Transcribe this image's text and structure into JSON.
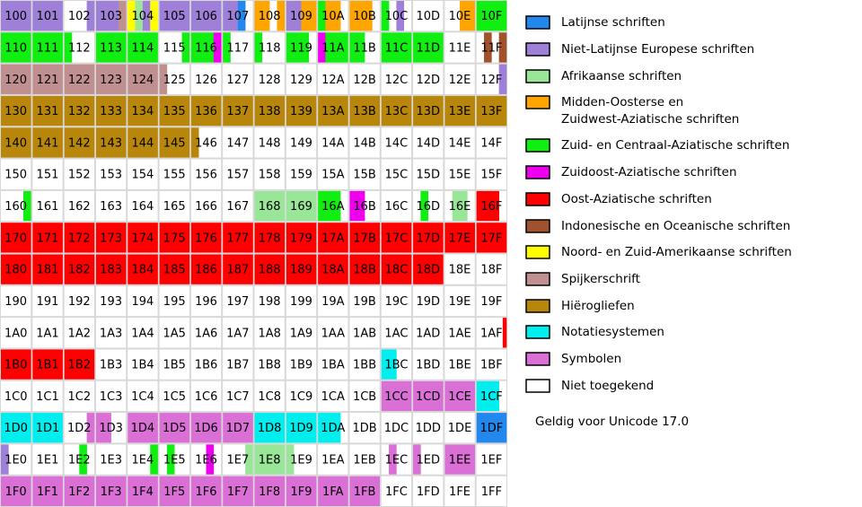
{
  "grid": {
    "rows": [
      [
        [
          "100",
          "N"
        ],
        [
          "101",
          "N"
        ],
        [
          "102",
          "UUUN"
        ],
        [
          "103",
          "NNNC"
        ],
        [
          "104",
          "WANW"
        ],
        [
          "105",
          "N"
        ],
        [
          "106",
          "N"
        ],
        [
          "107",
          "NNLU"
        ],
        [
          "108",
          "MMUM"
        ],
        [
          "109",
          "NNMM"
        ],
        [
          "10A",
          "ZMMU"
        ],
        [
          "10B",
          "MMMU"
        ],
        [
          "10C",
          "ZUNU"
        ],
        [
          "10D",
          "U"
        ],
        [
          "10E",
          "UUMM"
        ],
        [
          "10F",
          "Z"
        ]
      ],
      [
        [
          "110",
          "Z"
        ],
        [
          "111",
          "Z"
        ],
        [
          "112",
          "ZUUU"
        ],
        [
          "113",
          "Z"
        ],
        [
          "114",
          "Z"
        ],
        [
          "115",
          "UUUZ"
        ],
        [
          "116",
          "ZZZS"
        ],
        [
          "117",
          "ZUUU"
        ],
        [
          "118",
          "ZUUU"
        ],
        [
          "119",
          "ZZZU"
        ],
        [
          "11A",
          "SZZZ"
        ],
        [
          "11B",
          "ZZUU"
        ],
        [
          "11C",
          "Z"
        ],
        [
          "11D",
          "Z"
        ],
        [
          "11E",
          "U"
        ],
        [
          "11F",
          "UIUI"
        ]
      ],
      [
        [
          "120",
          "C"
        ],
        [
          "121",
          "C"
        ],
        [
          "122",
          "C"
        ],
        [
          "123",
          "C"
        ],
        [
          "124",
          "C"
        ],
        [
          "125",
          "CUUU"
        ],
        [
          "126",
          "U"
        ],
        [
          "127",
          "U"
        ],
        [
          "128",
          "U"
        ],
        [
          "129",
          "U"
        ],
        [
          "12A",
          "U"
        ],
        [
          "12B",
          "U"
        ],
        [
          "12C",
          "U"
        ],
        [
          "12D",
          "U"
        ],
        [
          "12E",
          "U"
        ],
        [
          "12F",
          "UUUN"
        ]
      ],
      [
        [
          "130",
          "H"
        ],
        [
          "131",
          "H"
        ],
        [
          "132",
          "H"
        ],
        [
          "133",
          "H"
        ],
        [
          "134",
          "H"
        ],
        [
          "135",
          "H"
        ],
        [
          "136",
          "H"
        ],
        [
          "137",
          "H"
        ],
        [
          "138",
          "H"
        ],
        [
          "139",
          "H"
        ],
        [
          "13A",
          "H"
        ],
        [
          "13B",
          "H"
        ],
        [
          "13C",
          "H"
        ],
        [
          "13D",
          "H"
        ],
        [
          "13E",
          "H"
        ],
        [
          "13F",
          "H"
        ]
      ],
      [
        [
          "140",
          "H"
        ],
        [
          "141",
          "H"
        ],
        [
          "142",
          "H"
        ],
        [
          "143",
          "H"
        ],
        [
          "144",
          "H"
        ],
        [
          "145",
          "H"
        ],
        [
          "146",
          "HUUU"
        ],
        [
          "147",
          "U"
        ],
        [
          "148",
          "U"
        ],
        [
          "149",
          "U"
        ],
        [
          "14A",
          "U"
        ],
        [
          "14B",
          "U"
        ],
        [
          "14C",
          "U"
        ],
        [
          "14D",
          "U"
        ],
        [
          "14E",
          "U"
        ],
        [
          "14F",
          "U"
        ]
      ],
      [
        [
          "150",
          "U"
        ],
        [
          "151",
          "U"
        ],
        [
          "152",
          "U"
        ],
        [
          "153",
          "U"
        ],
        [
          "154",
          "U"
        ],
        [
          "155",
          "U"
        ],
        [
          "156",
          "U"
        ],
        [
          "157",
          "U"
        ],
        [
          "158",
          "U"
        ],
        [
          "159",
          "U"
        ],
        [
          "15A",
          "U"
        ],
        [
          "15B",
          "U"
        ],
        [
          "15C",
          "U"
        ],
        [
          "15D",
          "U"
        ],
        [
          "15E",
          "U"
        ],
        [
          "15F",
          "U"
        ]
      ],
      [
        [
          "160",
          "UUUZ"
        ],
        [
          "161",
          "U"
        ],
        [
          "162",
          "U"
        ],
        [
          "163",
          "U"
        ],
        [
          "164",
          "U"
        ],
        [
          "165",
          "U"
        ],
        [
          "166",
          "U"
        ],
        [
          "167",
          "U"
        ],
        [
          "168",
          "A"
        ],
        [
          "169",
          "A"
        ],
        [
          "16A",
          "ZZZU"
        ],
        [
          "16B",
          "SSUU"
        ],
        [
          "16C",
          "U"
        ],
        [
          "16D",
          "UZUU"
        ],
        [
          "16E",
          "UAAU"
        ],
        [
          "16F",
          "OOOU"
        ]
      ],
      [
        [
          "170",
          "O"
        ],
        [
          "171",
          "O"
        ],
        [
          "172",
          "O"
        ],
        [
          "173",
          "O"
        ],
        [
          "174",
          "O"
        ],
        [
          "175",
          "O"
        ],
        [
          "176",
          "O"
        ],
        [
          "177",
          "O"
        ],
        [
          "178",
          "O"
        ],
        [
          "179",
          "O"
        ],
        [
          "17A",
          "O"
        ],
        [
          "17B",
          "O"
        ],
        [
          "17C",
          "O"
        ],
        [
          "17D",
          "O"
        ],
        [
          "17E",
          "O"
        ],
        [
          "17F",
          "O"
        ]
      ],
      [
        [
          "180",
          "O"
        ],
        [
          "181",
          "O"
        ],
        [
          "182",
          "O"
        ],
        [
          "183",
          "O"
        ],
        [
          "184",
          "O"
        ],
        [
          "185",
          "O"
        ],
        [
          "186",
          "O"
        ],
        [
          "187",
          "O"
        ],
        [
          "188",
          "O"
        ],
        [
          "189",
          "O"
        ],
        [
          "18A",
          "O"
        ],
        [
          "18B",
          "O"
        ],
        [
          "18C",
          "O"
        ],
        [
          "18D",
          "O"
        ],
        [
          "18E",
          "U"
        ],
        [
          "18F",
          "U"
        ]
      ],
      [
        [
          "190",
          "U"
        ],
        [
          "191",
          "U"
        ],
        [
          "192",
          "U"
        ],
        [
          "193",
          "U"
        ],
        [
          "194",
          "U"
        ],
        [
          "195",
          "U"
        ],
        [
          "196",
          "U"
        ],
        [
          "197",
          "U"
        ],
        [
          "198",
          "U"
        ],
        [
          "199",
          "U"
        ],
        [
          "19A",
          "U"
        ],
        [
          "19B",
          "U"
        ],
        [
          "19C",
          "U"
        ],
        [
          "19D",
          "U"
        ],
        [
          "19E",
          "U"
        ],
        [
          "19F",
          "U"
        ]
      ],
      [
        [
          "1A0",
          "U"
        ],
        [
          "1A1",
          "U"
        ],
        [
          "1A2",
          "U"
        ],
        [
          "1A3",
          "U"
        ],
        [
          "1A4",
          "U"
        ],
        [
          "1A5",
          "U"
        ],
        [
          "1A6",
          "U"
        ],
        [
          "1A7",
          "U"
        ],
        [
          "1A8",
          "U"
        ],
        [
          "1A9",
          "U"
        ],
        [
          "1AA",
          "U"
        ],
        [
          "1AB",
          "U"
        ],
        [
          "1AC",
          "U"
        ],
        [
          "1AD",
          "U"
        ],
        [
          "1AE",
          "U"
        ],
        [
          "1AF",
          "UUUUUUUO"
        ]
      ],
      [
        [
          "1B0",
          "O"
        ],
        [
          "1B1",
          "O"
        ],
        [
          "1B2",
          "O"
        ],
        [
          "1B3",
          "U"
        ],
        [
          "1B4",
          "U"
        ],
        [
          "1B5",
          "U"
        ],
        [
          "1B6",
          "U"
        ],
        [
          "1B7",
          "U"
        ],
        [
          "1B8",
          "U"
        ],
        [
          "1B9",
          "U"
        ],
        [
          "1BA",
          "U"
        ],
        [
          "1BB",
          "U"
        ],
        [
          "1BC",
          "TTUU"
        ],
        [
          "1BD",
          "U"
        ],
        [
          "1BE",
          "U"
        ],
        [
          "1BF",
          "U"
        ]
      ],
      [
        [
          "1C0",
          "U"
        ],
        [
          "1C1",
          "U"
        ],
        [
          "1C2",
          "U"
        ],
        [
          "1C3",
          "U"
        ],
        [
          "1C4",
          "U"
        ],
        [
          "1C5",
          "U"
        ],
        [
          "1C6",
          "U"
        ],
        [
          "1C7",
          "U"
        ],
        [
          "1C8",
          "U"
        ],
        [
          "1C9",
          "U"
        ],
        [
          "1CA",
          "U"
        ],
        [
          "1CB",
          "U"
        ],
        [
          "1CC",
          "Y"
        ],
        [
          "1CD",
          "Y"
        ],
        [
          "1CE",
          "Y"
        ],
        [
          "1CF",
          "TTTU"
        ]
      ],
      [
        [
          "1D0",
          "T"
        ],
        [
          "1D1",
          "T"
        ],
        [
          "1D2",
          "UUUY"
        ],
        [
          "1D3",
          "YYUU"
        ],
        [
          "1D4",
          "Y"
        ],
        [
          "1D5",
          "Y"
        ],
        [
          "1D6",
          "Y"
        ],
        [
          "1D7",
          "Y"
        ],
        [
          "1D8",
          "T"
        ],
        [
          "1D9",
          "T"
        ],
        [
          "1DA",
          "TTTU"
        ],
        [
          "1DB",
          "U"
        ],
        [
          "1DC",
          "U"
        ],
        [
          "1DD",
          "U"
        ],
        [
          "1DE",
          "U"
        ],
        [
          "1DF",
          "L"
        ]
      ],
      [
        [
          "1E0",
          "NUUU"
        ],
        [
          "1E1",
          "U"
        ],
        [
          "1E2",
          "UUZU"
        ],
        [
          "1E3",
          "U"
        ],
        [
          "1E4",
          "UUUZ"
        ],
        [
          "1E5",
          "UZUU"
        ],
        [
          "1E6",
          "UUSU"
        ],
        [
          "1E7",
          "UUUA"
        ],
        [
          "1E8",
          "A"
        ],
        [
          "1E9",
          "AUUU"
        ],
        [
          "1EA",
          "U"
        ],
        [
          "1EB",
          "U"
        ],
        [
          "1EC",
          "UYUU"
        ],
        [
          "1ED",
          "YUUU"
        ],
        [
          "1EE",
          "Y"
        ],
        [
          "1EF",
          "U"
        ]
      ],
      [
        [
          "1F0",
          "Y"
        ],
        [
          "1F1",
          "Y"
        ],
        [
          "1F2",
          "Y"
        ],
        [
          "1F3",
          "Y"
        ],
        [
          "1F4",
          "Y"
        ],
        [
          "1F5",
          "Y"
        ],
        [
          "1F6",
          "Y"
        ],
        [
          "1F7",
          "Y"
        ],
        [
          "1F8",
          "Y"
        ],
        [
          "1F9",
          "Y"
        ],
        [
          "1FA",
          "Y"
        ],
        [
          "1FB",
          "Y"
        ],
        [
          "1FC",
          "U"
        ],
        [
          "1FD",
          "U"
        ],
        [
          "1FE",
          "U"
        ],
        [
          "1FF",
          "U"
        ]
      ]
    ]
  },
  "legend": [
    {
      "code": "L",
      "color": "#2288ee",
      "lines": [
        "Latijnse schriften"
      ]
    },
    {
      "code": "N",
      "color": "#9e80d8",
      "lines": [
        "Niet-Latijnse Europese schriften"
      ]
    },
    {
      "code": "A",
      "color": "#99e699",
      "lines": [
        "Afrikaanse schriften"
      ]
    },
    {
      "code": "M",
      "color": "#ffa500",
      "lines": [
        "Midden-Oosterse en",
        "Zuidwest-Aziatische schriften"
      ]
    },
    {
      "code": "Z",
      "color": "#11ee11",
      "lines": [
        "Zuid- en Centraal-Aziatische schriften"
      ]
    },
    {
      "code": "S",
      "color": "#ee00ee",
      "lines": [
        "Zuidoost-Aziatische schriften"
      ]
    },
    {
      "code": "O",
      "color": "#ff0000",
      "lines": [
        "Oost-Aziatische schriften"
      ]
    },
    {
      "code": "I",
      "color": "#a0522d",
      "lines": [
        "Indonesische en Oceanische schriften"
      ]
    },
    {
      "code": "W",
      "color": "#ffff00",
      "lines": [
        "Noord- en Zuid-Amerikaanse schriften"
      ]
    },
    {
      "code": "C",
      "color": "#c09090",
      "lines": [
        "Spijkerschrift"
      ]
    },
    {
      "code": "H",
      "color": "#b8860b",
      "lines": [
        "Hiërogliefen"
      ]
    },
    {
      "code": "T",
      "color": "#00eeee",
      "lines": [
        "Notatiesystemen"
      ]
    },
    {
      "code": "Y",
      "color": "#da70d6",
      "lines": [
        "Symbolen"
      ]
    },
    {
      "code": "U",
      "color": "#ffffff",
      "lines": [
        "Niet toegekend"
      ]
    }
  ],
  "footnote": "Geldig voor Unicode 17.0"
}
